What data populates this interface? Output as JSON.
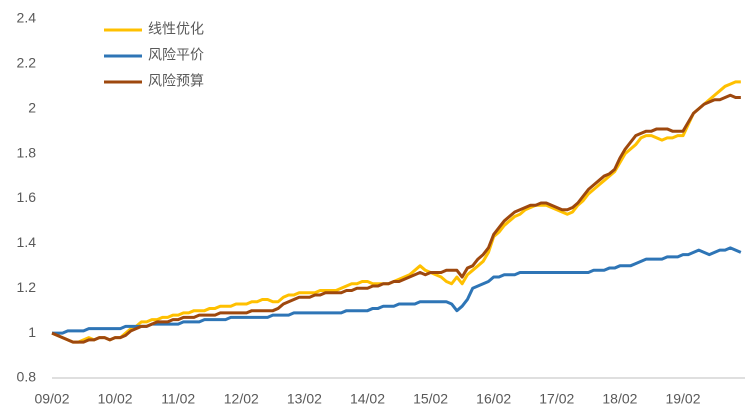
{
  "chart_data": {
    "type": "line",
    "categories": [
      "09/02",
      null,
      null,
      null,
      null,
      null,
      null,
      null,
      null,
      null,
      null,
      null,
      "10/02",
      null,
      null,
      null,
      null,
      null,
      null,
      null,
      null,
      null,
      null,
      null,
      "11/02",
      null,
      null,
      null,
      null,
      null,
      null,
      null,
      null,
      null,
      null,
      null,
      "12/02",
      null,
      null,
      null,
      null,
      null,
      null,
      null,
      null,
      null,
      null,
      null,
      "13/02",
      null,
      null,
      null,
      null,
      null,
      null,
      null,
      null,
      null,
      null,
      null,
      "14/02",
      null,
      null,
      null,
      null,
      null,
      null,
      null,
      null,
      null,
      null,
      null,
      "15/02",
      null,
      null,
      null,
      null,
      null,
      null,
      null,
      null,
      null,
      null,
      null,
      "16/02",
      null,
      null,
      null,
      null,
      null,
      null,
      null,
      null,
      null,
      null,
      null,
      "17/02",
      null,
      null,
      null,
      null,
      null,
      null,
      null,
      null,
      null,
      null,
      null,
      "18/02",
      null,
      null,
      null,
      null,
      null,
      null,
      null,
      null,
      null,
      null,
      null,
      "19/02",
      null,
      null,
      null,
      null,
      null,
      null,
      null,
      null,
      null,
      null,
      null
    ],
    "series": [
      {
        "name": "线性优化",
        "color": "#ffc000",
        "values": [
          1.0,
          0.99,
          0.98,
          0.97,
          0.96,
          0.96,
          0.97,
          0.98,
          0.97,
          0.98,
          0.98,
          0.97,
          0.98,
          0.98,
          1.0,
          1.02,
          1.03,
          1.05,
          1.05,
          1.06,
          1.06,
          1.07,
          1.07,
          1.08,
          1.08,
          1.09,
          1.09,
          1.1,
          1.1,
          1.1,
          1.11,
          1.11,
          1.12,
          1.12,
          1.12,
          1.13,
          1.13,
          1.13,
          1.14,
          1.14,
          1.15,
          1.15,
          1.14,
          1.14,
          1.16,
          1.17,
          1.17,
          1.18,
          1.18,
          1.18,
          1.18,
          1.19,
          1.19,
          1.19,
          1.19,
          1.2,
          1.21,
          1.22,
          1.22,
          1.23,
          1.23,
          1.22,
          1.22,
          1.22,
          1.22,
          1.23,
          1.24,
          1.25,
          1.26,
          1.28,
          1.3,
          1.28,
          1.27,
          1.26,
          1.25,
          1.23,
          1.22,
          1.25,
          1.22,
          1.26,
          1.28,
          1.3,
          1.32,
          1.36,
          1.43,
          1.45,
          1.48,
          1.5,
          1.52,
          1.53,
          1.55,
          1.56,
          1.57,
          1.57,
          1.57,
          1.56,
          1.55,
          1.54,
          1.53,
          1.54,
          1.57,
          1.59,
          1.62,
          1.64,
          1.66,
          1.68,
          1.7,
          1.72,
          1.76,
          1.8,
          1.82,
          1.84,
          1.87,
          1.88,
          1.88,
          1.87,
          1.86,
          1.87,
          1.87,
          1.88,
          1.88,
          1.93,
          1.98,
          2.0,
          2.02,
          2.04,
          2.06,
          2.08,
          2.1,
          2.11,
          2.12,
          2.12
        ]
      },
      {
        "name": "风险平价",
        "color": "#2e75b6",
        "values": [
          1.0,
          1.0,
          1.0,
          1.01,
          1.01,
          1.01,
          1.01,
          1.02,
          1.02,
          1.02,
          1.02,
          1.02,
          1.02,
          1.02,
          1.03,
          1.03,
          1.03,
          1.03,
          1.03,
          1.04,
          1.04,
          1.04,
          1.04,
          1.04,
          1.04,
          1.05,
          1.05,
          1.05,
          1.05,
          1.06,
          1.06,
          1.06,
          1.06,
          1.06,
          1.07,
          1.07,
          1.07,
          1.07,
          1.07,
          1.07,
          1.07,
          1.07,
          1.08,
          1.08,
          1.08,
          1.08,
          1.09,
          1.09,
          1.09,
          1.09,
          1.09,
          1.09,
          1.09,
          1.09,
          1.09,
          1.09,
          1.1,
          1.1,
          1.1,
          1.1,
          1.1,
          1.11,
          1.11,
          1.12,
          1.12,
          1.12,
          1.13,
          1.13,
          1.13,
          1.13,
          1.14,
          1.14,
          1.14,
          1.14,
          1.14,
          1.14,
          1.13,
          1.1,
          1.12,
          1.15,
          1.2,
          1.21,
          1.22,
          1.23,
          1.25,
          1.25,
          1.26,
          1.26,
          1.26,
          1.27,
          1.27,
          1.27,
          1.27,
          1.27,
          1.27,
          1.27,
          1.27,
          1.27,
          1.27,
          1.27,
          1.27,
          1.27,
          1.27,
          1.28,
          1.28,
          1.28,
          1.29,
          1.29,
          1.3,
          1.3,
          1.3,
          1.31,
          1.32,
          1.33,
          1.33,
          1.33,
          1.33,
          1.34,
          1.34,
          1.34,
          1.35,
          1.35,
          1.36,
          1.37,
          1.36,
          1.35,
          1.36,
          1.37,
          1.37,
          1.38,
          1.37,
          1.36
        ]
      },
      {
        "name": "风险预算",
        "color": "#9e480e",
        "values": [
          1.0,
          0.99,
          0.98,
          0.97,
          0.96,
          0.96,
          0.96,
          0.97,
          0.97,
          0.98,
          0.98,
          0.97,
          0.98,
          0.98,
          0.99,
          1.01,
          1.02,
          1.03,
          1.03,
          1.04,
          1.05,
          1.05,
          1.05,
          1.06,
          1.06,
          1.07,
          1.07,
          1.07,
          1.08,
          1.08,
          1.08,
          1.08,
          1.09,
          1.09,
          1.09,
          1.09,
          1.09,
          1.09,
          1.1,
          1.1,
          1.1,
          1.1,
          1.1,
          1.11,
          1.13,
          1.14,
          1.15,
          1.16,
          1.16,
          1.16,
          1.17,
          1.17,
          1.18,
          1.18,
          1.18,
          1.18,
          1.19,
          1.19,
          1.2,
          1.2,
          1.2,
          1.21,
          1.21,
          1.22,
          1.22,
          1.23,
          1.23,
          1.24,
          1.25,
          1.26,
          1.27,
          1.26,
          1.27,
          1.27,
          1.27,
          1.28,
          1.28,
          1.28,
          1.25,
          1.29,
          1.3,
          1.33,
          1.35,
          1.38,
          1.44,
          1.47,
          1.5,
          1.52,
          1.54,
          1.55,
          1.56,
          1.57,
          1.57,
          1.58,
          1.58,
          1.57,
          1.56,
          1.55,
          1.55,
          1.56,
          1.58,
          1.61,
          1.64,
          1.66,
          1.68,
          1.7,
          1.71,
          1.73,
          1.78,
          1.82,
          1.85,
          1.88,
          1.89,
          1.9,
          1.9,
          1.91,
          1.91,
          1.91,
          1.9,
          1.9,
          1.9,
          1.94,
          1.98,
          2.0,
          2.02,
          2.03,
          2.04,
          2.04,
          2.05,
          2.06,
          2.05,
          2.05
        ]
      }
    ],
    "ylim": [
      0.8,
      2.4
    ],
    "yticks": [
      0.8,
      1,
      1.2,
      1.4,
      1.6,
      1.8,
      2,
      2.2,
      2.4
    ],
    "grid": false,
    "legend": "top-left"
  }
}
